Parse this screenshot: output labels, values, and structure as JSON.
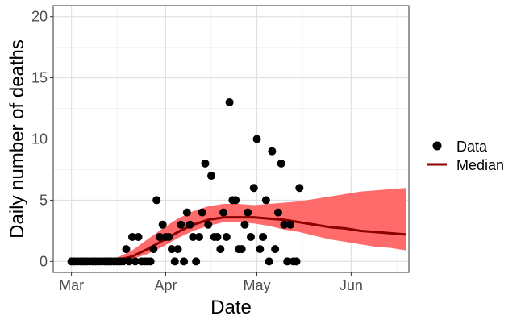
{
  "chart_data": {
    "type": "scatter",
    "title": "",
    "xlabel": "Date",
    "ylabel": "Daily number of deaths",
    "xlim": [
      "2020-02-24",
      "2020-06-20"
    ],
    "ylim": [
      -0.9,
      20.9
    ],
    "x_ticks": [
      {
        "date": "2020-03-01",
        "label": "Mar"
      },
      {
        "date": "2020-04-01",
        "label": "Apr"
      },
      {
        "date": "2020-05-01",
        "label": "May"
      },
      {
        "date": "2020-06-01",
        "label": "Jun"
      }
    ],
    "x_minor_ticks": [
      "2020-03-16",
      "2020-04-16",
      "2020-05-16",
      "2020-06-16"
    ],
    "y_ticks": [
      0,
      5,
      10,
      15,
      20
    ],
    "y_minor_ticks": [
      2.5,
      7.5,
      12.5,
      17.5
    ],
    "grid": true,
    "legend": {
      "position": "right",
      "entries": [
        {
          "label": "Data",
          "kind": "point"
        },
        {
          "label": "Median",
          "kind": "line"
        }
      ]
    },
    "series": [
      {
        "name": "Data",
        "kind": "points",
        "color": "#000000",
        "points": [
          [
            "2020-03-01",
            0
          ],
          [
            "2020-03-02",
            0
          ],
          [
            "2020-03-03",
            0
          ],
          [
            "2020-03-04",
            0
          ],
          [
            "2020-03-05",
            0
          ],
          [
            "2020-03-06",
            0
          ],
          [
            "2020-03-07",
            0
          ],
          [
            "2020-03-08",
            0
          ],
          [
            "2020-03-09",
            0
          ],
          [
            "2020-03-10",
            0
          ],
          [
            "2020-03-11",
            0
          ],
          [
            "2020-03-12",
            0
          ],
          [
            "2020-03-13",
            0
          ],
          [
            "2020-03-14",
            0
          ],
          [
            "2020-03-15",
            0
          ],
          [
            "2020-03-16",
            0
          ],
          [
            "2020-03-17",
            0
          ],
          [
            "2020-03-18",
            0
          ],
          [
            "2020-03-19",
            1
          ],
          [
            "2020-03-20",
            0
          ],
          [
            "2020-03-21",
            2
          ],
          [
            "2020-03-22",
            0
          ],
          [
            "2020-03-23",
            2
          ],
          [
            "2020-03-24",
            0
          ],
          [
            "2020-03-25",
            0
          ],
          [
            "2020-03-26",
            0
          ],
          [
            "2020-03-27",
            0
          ],
          [
            "2020-03-28",
            1
          ],
          [
            "2020-03-29",
            5
          ],
          [
            "2020-03-30",
            2
          ],
          [
            "2020-03-31",
            3
          ],
          [
            "2020-04-01",
            2
          ],
          [
            "2020-04-02",
            2
          ],
          [
            "2020-04-03",
            1
          ],
          [
            "2020-04-04",
            0
          ],
          [
            "2020-04-05",
            1
          ],
          [
            "2020-04-06",
            3
          ],
          [
            "2020-04-07",
            0
          ],
          [
            "2020-04-08",
            4
          ],
          [
            "2020-04-09",
            3
          ],
          [
            "2020-04-10",
            2
          ],
          [
            "2020-04-11",
            0
          ],
          [
            "2020-04-12",
            2
          ],
          [
            "2020-04-13",
            4
          ],
          [
            "2020-04-14",
            8
          ],
          [
            "2020-04-15",
            3
          ],
          [
            "2020-04-16",
            7
          ],
          [
            "2020-04-17",
            2
          ],
          [
            "2020-04-18",
            2
          ],
          [
            "2020-04-19",
            1
          ],
          [
            "2020-04-20",
            4
          ],
          [
            "2020-04-21",
            2
          ],
          [
            "2020-04-22",
            13
          ],
          [
            "2020-04-23",
            5
          ],
          [
            "2020-04-24",
            5
          ],
          [
            "2020-04-25",
            1
          ],
          [
            "2020-04-26",
            1
          ],
          [
            "2020-04-27",
            3
          ],
          [
            "2020-04-28",
            4
          ],
          [
            "2020-04-29",
            2
          ],
          [
            "2020-04-30",
            6
          ],
          [
            "2020-05-01",
            10
          ],
          [
            "2020-05-02",
            1
          ],
          [
            "2020-05-03",
            2
          ],
          [
            "2020-05-04",
            5
          ],
          [
            "2020-05-05",
            0
          ],
          [
            "2020-05-06",
            9
          ],
          [
            "2020-05-07",
            1
          ],
          [
            "2020-05-08",
            4
          ],
          [
            "2020-05-09",
            8
          ],
          [
            "2020-05-10",
            3
          ],
          [
            "2020-05-11",
            0
          ],
          [
            "2020-05-12",
            3
          ],
          [
            "2020-05-13",
            0
          ],
          [
            "2020-05-14",
            0
          ],
          [
            "2020-05-15",
            6
          ]
        ]
      },
      {
        "name": "Median",
        "kind": "line",
        "color": "#8b0000",
        "points": [
          [
            "2020-03-01",
            0.0
          ],
          [
            "2020-03-11",
            0.0
          ],
          [
            "2020-03-16",
            0.1
          ],
          [
            "2020-03-21",
            0.4
          ],
          [
            "2020-03-26",
            1.0
          ],
          [
            "2020-03-31",
            1.7
          ],
          [
            "2020-04-05",
            2.4
          ],
          [
            "2020-04-10",
            3.0
          ],
          [
            "2020-04-15",
            3.4
          ],
          [
            "2020-04-20",
            3.6
          ],
          [
            "2020-04-25",
            3.6
          ],
          [
            "2020-04-30",
            3.6
          ],
          [
            "2020-05-05",
            3.5
          ],
          [
            "2020-05-10",
            3.4
          ],
          [
            "2020-05-15",
            3.2
          ],
          [
            "2020-05-20",
            3.0
          ],
          [
            "2020-05-25",
            2.8
          ],
          [
            "2020-05-30",
            2.7
          ],
          [
            "2020-06-04",
            2.5
          ],
          [
            "2020-06-09",
            2.4
          ],
          [
            "2020-06-14",
            2.3
          ],
          [
            "2020-06-19",
            2.2
          ]
        ]
      },
      {
        "name": "",
        "kind": "band",
        "color": "#ff6a6a",
        "points": [
          [
            "2020-03-11",
            0.0,
            0.1
          ],
          [
            "2020-03-16",
            0.0,
            0.3
          ],
          [
            "2020-03-21",
            0.2,
            0.9
          ],
          [
            "2020-03-26",
            0.6,
            1.8
          ],
          [
            "2020-03-31",
            1.2,
            2.7
          ],
          [
            "2020-04-05",
            1.9,
            3.5
          ],
          [
            "2020-04-10",
            2.5,
            4.1
          ],
          [
            "2020-04-15",
            2.9,
            4.5
          ],
          [
            "2020-04-20",
            3.2,
            4.7
          ],
          [
            "2020-04-25",
            3.2,
            4.7
          ],
          [
            "2020-04-30",
            3.1,
            4.6
          ],
          [
            "2020-05-05",
            2.9,
            4.7
          ],
          [
            "2020-05-10",
            2.6,
            4.8
          ],
          [
            "2020-05-15",
            2.4,
            4.9
          ],
          [
            "2020-05-20",
            2.1,
            5.1
          ],
          [
            "2020-05-25",
            1.8,
            5.3
          ],
          [
            "2020-05-30",
            1.6,
            5.5
          ],
          [
            "2020-06-04",
            1.4,
            5.7
          ],
          [
            "2020-06-09",
            1.2,
            5.8
          ],
          [
            "2020-06-14",
            1.1,
            5.9
          ],
          [
            "2020-06-19",
            0.9,
            6.0
          ]
        ]
      }
    ]
  }
}
